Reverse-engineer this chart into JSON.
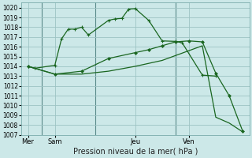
{
  "bg_color": "#cce8e8",
  "grid_color": "#9dc4c4",
  "line_color": "#1a6620",
  "title": "Pression niveau de la mer( hPa )",
  "ylim": [
    1007,
    1020.5
  ],
  "yticks": [
    1007,
    1008,
    1009,
    1010,
    1011,
    1012,
    1013,
    1014,
    1015,
    1016,
    1017,
    1018,
    1019,
    1020
  ],
  "xlim": [
    0,
    17
  ],
  "xtick_positions": [
    0.5,
    2.5,
    8.5,
    12.5
  ],
  "xtick_labels": [
    "Mer",
    "Sam",
    "Jeu",
    "Ven"
  ],
  "vlines": [
    1.5,
    5.5,
    11.5
  ],
  "series1_x": [
    0.5,
    1.0,
    2.5,
    3.0,
    3.5,
    4.0,
    4.5,
    5.0,
    6.5,
    7.0,
    7.5,
    8.0,
    8.5,
    9.5,
    10.5,
    11.5,
    12.0,
    13.5,
    14.5
  ],
  "series1_y": [
    1014.0,
    1013.8,
    1014.1,
    1016.8,
    1017.8,
    1017.8,
    1018.0,
    1017.2,
    1018.7,
    1018.85,
    1018.9,
    1019.85,
    1019.9,
    1018.7,
    1016.6,
    1016.55,
    1016.4,
    1013.1,
    1013.0
  ],
  "series2_x": [
    0.5,
    2.5,
    4.5,
    6.5,
    8.5,
    9.5,
    10.5,
    11.5,
    12.5,
    13.5,
    14.5,
    15.5,
    16.5
  ],
  "series2_y": [
    1014.0,
    1013.2,
    1013.5,
    1014.8,
    1015.4,
    1015.7,
    1016.1,
    1016.5,
    1016.6,
    1016.5,
    1013.3,
    1011.0,
    1007.4
  ],
  "series3_x": [
    0.5,
    2.5,
    4.5,
    6.5,
    8.5,
    9.5,
    10.5,
    11.5,
    12.5,
    13.5,
    14.5,
    15.5,
    16.5
  ],
  "series3_y": [
    1014.0,
    1013.2,
    1013.2,
    1013.5,
    1014.0,
    1014.3,
    1014.6,
    1015.1,
    1015.6,
    1016.1,
    1008.8,
    1008.2,
    1007.3
  ]
}
